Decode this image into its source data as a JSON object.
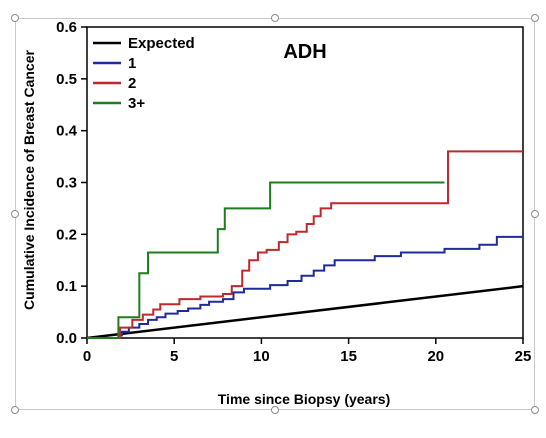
{
  "chart_data": {
    "type": "line",
    "title": "ADH",
    "xlabel": "Time since Biopsy (years)",
    "ylabel": "Cumulative Incidence of Breast Cancer",
    "xlim": [
      0,
      25
    ],
    "ylim": [
      0,
      0.6
    ],
    "xticks": [
      0,
      5,
      10,
      15,
      20,
      25
    ],
    "yticks": [
      0.0,
      0.1,
      0.2,
      0.3,
      0.4,
      0.5,
      0.6
    ],
    "grid": false,
    "legend_position": "top-left",
    "series": [
      {
        "name": "Expected",
        "color": "#000000",
        "step": false,
        "points": [
          [
            0,
            0
          ],
          [
            25,
            0.1
          ]
        ]
      },
      {
        "name": "1",
        "color": "#1f2a9c",
        "step": true,
        "points": [
          [
            0,
            0
          ],
          [
            1.9,
            0.005
          ],
          [
            2.0,
            0.012
          ],
          [
            2.4,
            0.02
          ],
          [
            3.0,
            0.027
          ],
          [
            3.5,
            0.035
          ],
          [
            4.0,
            0.04
          ],
          [
            4.5,
            0.047
          ],
          [
            5.2,
            0.052
          ],
          [
            5.8,
            0.057
          ],
          [
            6.5,
            0.064
          ],
          [
            7.0,
            0.07
          ],
          [
            7.8,
            0.075
          ],
          [
            8.4,
            0.088
          ],
          [
            9.0,
            0.095
          ],
          [
            10.5,
            0.102
          ],
          [
            11.5,
            0.11
          ],
          [
            12.3,
            0.12
          ],
          [
            13.0,
            0.13
          ],
          [
            13.6,
            0.14
          ],
          [
            14.2,
            0.15
          ],
          [
            16.5,
            0.158
          ],
          [
            18.0,
            0.165
          ],
          [
            20.5,
            0.172
          ],
          [
            22.5,
            0.18
          ],
          [
            23.5,
            0.195
          ],
          [
            25,
            0.195
          ]
        ]
      },
      {
        "name": "2",
        "color": "#c0282d",
        "step": true,
        "points": [
          [
            0,
            0
          ],
          [
            1.9,
            0.02
          ],
          [
            2.6,
            0.035
          ],
          [
            3.2,
            0.045
          ],
          [
            3.8,
            0.055
          ],
          [
            4.2,
            0.065
          ],
          [
            5.3,
            0.075
          ],
          [
            6.5,
            0.08
          ],
          [
            7.8,
            0.085
          ],
          [
            8.3,
            0.1
          ],
          [
            8.9,
            0.13
          ],
          [
            9.3,
            0.15
          ],
          [
            9.8,
            0.165
          ],
          [
            10.3,
            0.17
          ],
          [
            11.0,
            0.185
          ],
          [
            11.5,
            0.2
          ],
          [
            12.0,
            0.205
          ],
          [
            12.6,
            0.22
          ],
          [
            13.0,
            0.235
          ],
          [
            13.4,
            0.25
          ],
          [
            14.0,
            0.26
          ],
          [
            20.7,
            0.36
          ],
          [
            25,
            0.36
          ]
        ]
      },
      {
        "name": "3+",
        "color": "#1e7d1e",
        "step": true,
        "points": [
          [
            0,
            0
          ],
          [
            1.8,
            0.04
          ],
          [
            3.0,
            0.125
          ],
          [
            3.5,
            0.165
          ],
          [
            7.5,
            0.21
          ],
          [
            7.9,
            0.25
          ],
          [
            10.5,
            0.3
          ],
          [
            20.5,
            0.3
          ]
        ]
      }
    ]
  }
}
